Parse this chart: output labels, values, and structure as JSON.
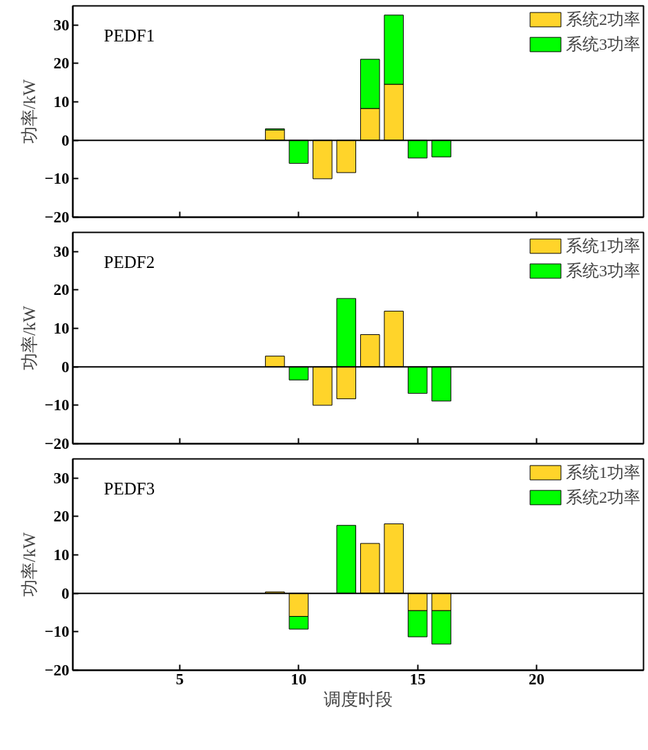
{
  "chart_data": [
    {
      "type": "bar",
      "title": "PEDF1",
      "stacked": true,
      "x": [
        9,
        10,
        11,
        12,
        13,
        14,
        15,
        16
      ],
      "ylabel": "功率/kW",
      "xlim": [
        0.5,
        24.5
      ],
      "xticks": [
        {
          "value": 5,
          "label": null
        },
        {
          "value": 10,
          "label": null
        },
        {
          "value": 15,
          "label": null
        },
        {
          "value": 20,
          "label": null
        }
      ],
      "ylim": [
        -20,
        35
      ],
      "yticks": [
        -20,
        -10,
        0,
        10,
        20,
        30
      ],
      "legend": "top right",
      "grid": false,
      "tick_labels": "y",
      "ref_lines": [
        {
          "axis": "y",
          "value": 0,
          "color": "#000000"
        }
      ],
      "series": [
        {
          "name": "系统2功率",
          "color": "#ffd42a",
          "values": [
            2.7,
            null,
            -10,
            -8.4,
            8.3,
            14.6,
            null,
            null
          ]
        },
        {
          "name": "系统3功率",
          "color": "#00ff00",
          "values": [
            0.3,
            -6,
            null,
            null,
            12.8,
            18,
            -4.6,
            -4.3
          ]
        }
      ]
    },
    {
      "type": "bar",
      "title": "PEDF2",
      "stacked": true,
      "x": [
        9,
        10,
        11,
        12,
        13,
        14,
        15,
        16
      ],
      "ylabel": "功率/kW",
      "xlim": [
        0.5,
        24.5
      ],
      "xticks": [
        {
          "value": 5,
          "label": null
        },
        {
          "value": 10,
          "label": null
        },
        {
          "value": 15,
          "label": null
        },
        {
          "value": 20,
          "label": null
        }
      ],
      "ylim": [
        -20,
        35
      ],
      "yticks": [
        -20,
        -10,
        0,
        10,
        20,
        30
      ],
      "legend": "top right",
      "grid": false,
      "tick_labels": "y",
      "ref_lines": [
        {
          "axis": "y",
          "value": 0,
          "color": "#000000"
        }
      ],
      "series": [
        {
          "name": "系统1功率",
          "color": "#ffd42a",
          "values": [
            2.8,
            null,
            -10,
            -8.3,
            8.4,
            14.5,
            null,
            null
          ]
        },
        {
          "name": "系统3功率",
          "color": "#00ff00",
          "values": [
            null,
            -3.4,
            null,
            17.8,
            null,
            null,
            -6.9,
            -8.9
          ]
        }
      ]
    },
    {
      "type": "bar",
      "title": "PEDF3",
      "stacked": true,
      "x": [
        9,
        10,
        11,
        12,
        13,
        14,
        15,
        16
      ],
      "xlabel": "调度时段",
      "ylabel": "功率/kW",
      "xlim": [
        0.5,
        24.5
      ],
      "xticks": [
        5,
        10,
        15,
        20
      ],
      "ylim": [
        -20,
        35
      ],
      "yticks": [
        -20,
        -10,
        0,
        10,
        20,
        30
      ],
      "legend": "top right",
      "grid": false,
      "ref_lines": [
        {
          "axis": "y",
          "value": 0,
          "color": "#000000"
        }
      ],
      "series": [
        {
          "name": "系统1功率",
          "color": "#ffd42a",
          "values": [
            0.4,
            -6,
            null,
            null,
            13,
            18.1,
            -4.5,
            -4.5
          ]
        },
        {
          "name": "系统2功率",
          "color": "#00ff00",
          "values": [
            null,
            -3.3,
            null,
            17.7,
            null,
            null,
            -6.8,
            -8.7
          ]
        }
      ]
    }
  ]
}
